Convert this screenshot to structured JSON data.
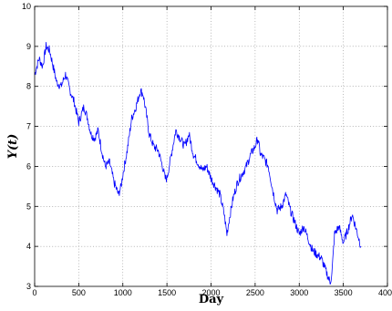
{
  "chart_data": {
    "type": "line",
    "title": "",
    "xlabel": "Day",
    "ylabel": "Y(t)",
    "xlim": [
      0,
      4000
    ],
    "ylim": [
      3,
      10
    ],
    "xticks": [
      0,
      500,
      1000,
      1500,
      2000,
      2500,
      3000,
      3500,
      4000
    ],
    "yticks": [
      3,
      4,
      5,
      6,
      7,
      8,
      9,
      10
    ],
    "grid": true,
    "line_color": "#0000ff",
    "series": [
      {
        "x": [
          0,
          50,
          90,
          130,
          170,
          210,
          250,
          300,
          350,
          400,
          450,
          500,
          530,
          560,
          600,
          640,
          680,
          720,
          760,
          800,
          850,
          900,
          950,
          980,
          1000,
          1050,
          1100,
          1150,
          1200,
          1230,
          1260,
          1300,
          1350,
          1400,
          1450,
          1480,
          1500,
          1550,
          1600,
          1650,
          1700,
          1750,
          1800,
          1850,
          1900,
          1950,
          2000,
          2050,
          2100,
          2150,
          2180,
          2200,
          2250,
          2300,
          2350,
          2400,
          2450,
          2500,
          2530,
          2560,
          2600,
          2650,
          2700,
          2750,
          2800,
          2850,
          2900,
          2950,
          3000,
          3050,
          3100,
          3150,
          3200,
          3250,
          3300,
          3350,
          3370,
          3400,
          3450,
          3500,
          3550,
          3600,
          3650,
          3700
        ],
        "y": [
          8.3,
          8.7,
          8.5,
          9.0,
          8.9,
          8.5,
          8.1,
          8.0,
          8.3,
          7.9,
          7.6,
          7.1,
          7.3,
          7.5,
          7.2,
          6.8,
          6.7,
          6.9,
          6.4,
          6.0,
          6.1,
          5.6,
          5.3,
          5.5,
          5.8,
          6.4,
          7.2,
          7.5,
          7.9,
          7.8,
          7.4,
          6.8,
          6.5,
          6.4,
          6.0,
          5.7,
          5.7,
          6.3,
          6.9,
          6.7,
          6.5,
          6.8,
          6.3,
          6.1,
          5.9,
          6.0,
          5.7,
          5.5,
          5.3,
          4.8,
          4.3,
          4.6,
          5.2,
          5.6,
          5.8,
          6.0,
          6.3,
          6.5,
          6.7,
          6.3,
          6.2,
          6.0,
          5.4,
          4.9,
          5.0,
          5.3,
          4.9,
          4.6,
          4.3,
          4.5,
          4.2,
          3.9,
          3.8,
          3.7,
          3.4,
          3.1,
          3.3,
          4.3,
          4.5,
          4.1,
          4.4,
          4.8,
          4.4,
          4.0
        ]
      }
    ]
  }
}
